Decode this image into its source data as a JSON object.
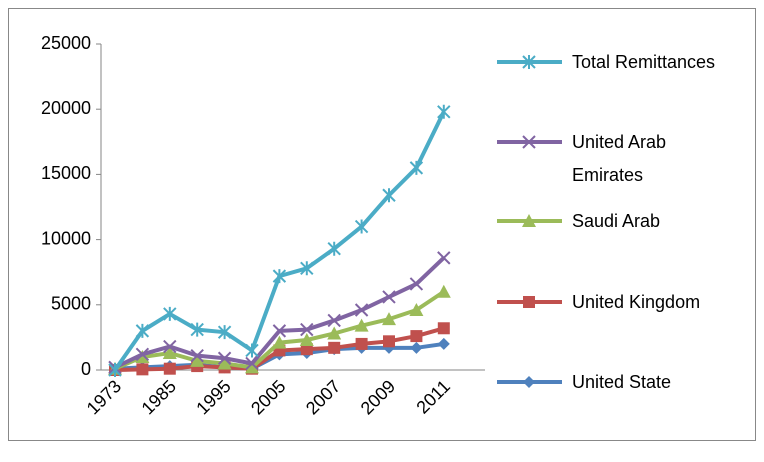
{
  "chart_data": {
    "type": "line",
    "categories": [
      "1973",
      null,
      "1985",
      null,
      "1995",
      null,
      "2005",
      null,
      "2007",
      null,
      "2009",
      null,
      "2011"
    ],
    "ylim": [
      0,
      25000
    ],
    "yticks": [
      0,
      5000,
      10000,
      15000,
      20000,
      25000
    ],
    "grid": false,
    "legend": "right",
    "series": [
      {
        "name": "Total Remittances",
        "color": "#4bacc6",
        "marker": "star",
        "values": [
          0,
          3000,
          4300,
          3100,
          2900,
          1500,
          7200,
          7800,
          9300,
          11000,
          13400,
          15500,
          19800
        ]
      },
      {
        "name": "United Arab Emirates",
        "color": "#8064a2",
        "marker": "x",
        "values": [
          200,
          1200,
          1800,
          1100,
          900,
          500,
          3000,
          3100,
          3800,
          4600,
          5600,
          6600,
          8600
        ]
      },
      {
        "name": "Saudi Arab",
        "color": "#9bbb59",
        "marker": "triangle",
        "values": [
          100,
          1000,
          1300,
          700,
          500,
          200,
          2100,
          2300,
          2800,
          3400,
          3900,
          4600,
          6000
        ]
      },
      {
        "name": "United Kingdom",
        "color": "#c0504d",
        "marker": "square",
        "values": [
          0,
          50,
          100,
          300,
          200,
          100,
          1500,
          1600,
          1700,
          2000,
          2200,
          2600,
          3200
        ]
      },
      {
        "name": "United State",
        "color": "#4f81bd",
        "marker": "diamond",
        "values": [
          100,
          200,
          300,
          400,
          200,
          100,
          1200,
          1300,
          1600,
          1700,
          1700,
          1700,
          2000
        ]
      }
    ]
  }
}
